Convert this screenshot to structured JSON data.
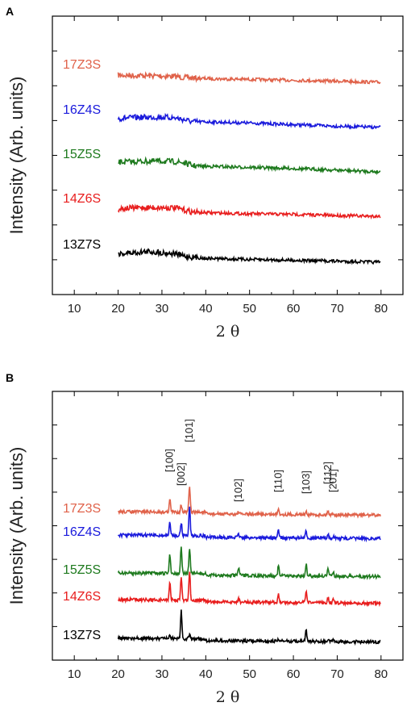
{
  "chart_data": [
    {
      "panel": "A",
      "type": "line",
      "xlabel": "2 θ",
      "ylabel": "Intensity (Arb. units)",
      "xlim": [
        5,
        85
      ],
      "xticks": [
        "10",
        "20",
        "30",
        "40",
        "50",
        "60",
        "70",
        "80"
      ],
      "yticks_labeled": false,
      "legend": "none",
      "series": [
        {
          "name": "17Z3S",
          "color": "#e0624a",
          "x": [
            20,
            25,
            30,
            33,
            35,
            37,
            40,
            50,
            60,
            70,
            80
          ],
          "y": [
            4.75,
            4.72,
            4.68,
            4.65,
            4.55,
            4.5,
            4.45,
            4.38,
            4.3,
            4.22,
            4.12
          ]
        },
        {
          "name": "16Z4S",
          "color": "#1a1adc",
          "x": [
            20,
            25,
            30,
            33,
            35,
            37,
            40,
            50,
            60,
            70,
            80
          ],
          "y": [
            3.9,
            4.0,
            4.02,
            3.95,
            3.8,
            3.6,
            3.6,
            3.5,
            3.35,
            3.22,
            3.1
          ]
        },
        {
          "name": "15Z5S",
          "color": "#1e7a1e",
          "x": [
            20,
            25,
            30,
            33,
            35,
            37,
            40,
            50,
            60,
            70,
            80
          ],
          "y": [
            2.9,
            2.98,
            3.0,
            2.95,
            2.85,
            2.6,
            2.55,
            2.45,
            2.35,
            2.2,
            2.05
          ]
        },
        {
          "name": "14Z6S",
          "color": "#e81e1e",
          "x": [
            20,
            25,
            30,
            33,
            35,
            37,
            40,
            50,
            60,
            70,
            80
          ],
          "y": [
            1.95,
            2.05,
            2.05,
            2.02,
            1.85,
            1.65,
            1.6,
            1.5,
            1.45,
            1.35,
            1.28
          ]
        },
        {
          "name": "13Z7S",
          "color": "#000000",
          "x": [
            20,
            25,
            27,
            30,
            33,
            35,
            37,
            40,
            50,
            60,
            70,
            80
          ],
          "y": [
            0.85,
            1.0,
            1.05,
            0.95,
            0.85,
            0.65,
            0.55,
            0.45,
            0.35,
            0.28,
            0.2,
            0.1
          ]
        }
      ]
    },
    {
      "panel": "B",
      "type": "line",
      "xlabel": "2 θ",
      "ylabel": "Intensity (Arb. units)",
      "xlim": [
        5,
        85
      ],
      "xticks": [
        "10",
        "20",
        "30",
        "40",
        "50",
        "60",
        "70",
        "80"
      ],
      "yticks_labeled": false,
      "legend": "none",
      "peaks": [
        {
          "label": "[100]",
          "x": 31.8
        },
        {
          "label": "[002]",
          "x": 34.4
        },
        {
          "label": "[101]",
          "x": 36.3
        },
        {
          "label": "[102]",
          "x": 47.5
        },
        {
          "label": "[110]",
          "x": 56.6
        },
        {
          "label": "[103]",
          "x": 62.9
        },
        {
          "label": "[112]",
          "x": 67.9
        },
        {
          "label": "[201]",
          "x": 69.1
        }
      ],
      "series": [
        {
          "name": "17Z3S",
          "color": "#e0624a",
          "peak_heights": [
            1.0,
            0.6,
            2.0,
            0.2,
            0.5,
            0.35,
            0.3,
            0.15
          ]
        },
        {
          "name": "16Z4S",
          "color": "#1a1adc",
          "peak_heights": [
            1.0,
            1.0,
            2.3,
            0.3,
            0.6,
            0.5,
            0.35,
            0.2
          ]
        },
        {
          "name": "15Z5S",
          "color": "#1e7a1e",
          "peak_heights": [
            1.5,
            2.1,
            2.0,
            0.6,
            0.8,
            0.9,
            0.6,
            0.4
          ]
        },
        {
          "name": "14Z6S",
          "color": "#e81e1e",
          "peak_heights": [
            1.3,
            1.7,
            2.3,
            0.3,
            0.6,
            0.8,
            0.4,
            0.3
          ]
        },
        {
          "name": "13Z7S",
          "color": "#000000",
          "peak_heights": [
            0.2,
            2.2,
            0.3,
            0.1,
            0.1,
            0.9,
            0.1,
            0.1
          ]
        }
      ]
    }
  ]
}
